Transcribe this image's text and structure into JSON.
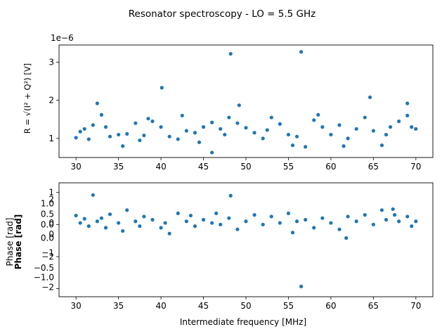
{
  "figure": {
    "suptitle": "Resonator spectroscopy - LO = 5.5 GHz",
    "point_color": "#1f77b4"
  },
  "chart_data": [
    {
      "type": "scatter",
      "title": "",
      "xlabel": "",
      "ylabel": "R = √(I² + Q²) [V]",
      "offset_text": "1e−6",
      "xlim": [
        28,
        72
      ],
      "ylim": [
        0.5,
        3.45
      ],
      "xticks": [
        30,
        35,
        40,
        45,
        50,
        55,
        60,
        65,
        70
      ],
      "yticks": [
        1,
        2,
        3
      ],
      "grid": false,
      "x_range": [
        30,
        70
      ],
      "outliers": [
        {
          "x": 32.5,
          "y": 1.92
        },
        {
          "x": 40.1,
          "y": 2.33
        },
        {
          "x": 48.2,
          "y": 3.22
        },
        {
          "x": 49.2,
          "y": 1.87
        },
        {
          "x": 56.5,
          "y": 3.27
        },
        {
          "x": 64.6,
          "y": 2.08
        },
        {
          "x": 69.0,
          "y": 1.92
        },
        {
          "x": 46.0,
          "y": 0.63
        }
      ],
      "series": [
        {
          "points": [
            [
              30.0,
              1.02
            ],
            [
              30.5,
              1.18
            ],
            [
              31.0,
              1.25
            ],
            [
              31.5,
              0.98
            ],
            [
              32.0,
              1.35
            ],
            [
              33.0,
              1.62
            ],
            [
              33.5,
              1.3
            ],
            [
              34.0,
              1.05
            ],
            [
              35.0,
              1.1
            ],
            [
              35.5,
              0.8
            ],
            [
              36.0,
              1.12
            ],
            [
              37.0,
              1.4
            ],
            [
              37.5,
              0.95
            ],
            [
              38.0,
              1.08
            ],
            [
              38.5,
              1.52
            ],
            [
              39.0,
              1.45
            ],
            [
              40.0,
              1.3
            ],
            [
              41.0,
              1.05
            ],
            [
              42.0,
              0.98
            ],
            [
              42.5,
              1.6
            ],
            [
              43.0,
              1.2
            ],
            [
              44.0,
              1.15
            ],
            [
              44.5,
              0.9
            ],
            [
              45.0,
              1.3
            ],
            [
              46.0,
              1.42
            ],
            [
              47.0,
              1.25
            ],
            [
              47.5,
              1.1
            ],
            [
              48.0,
              1.55
            ],
            [
              49.0,
              1.4
            ],
            [
              50.0,
              1.28
            ],
            [
              51.0,
              1.15
            ],
            [
              52.0,
              1.0
            ],
            [
              52.5,
              1.22
            ],
            [
              53.0,
              1.55
            ],
            [
              54.0,
              1.38
            ],
            [
              55.0,
              1.1
            ],
            [
              55.5,
              0.82
            ],
            [
              56.0,
              1.05
            ],
            [
              57.0,
              0.78
            ],
            [
              58.0,
              1.48
            ],
            [
              58.5,
              1.62
            ],
            [
              59.0,
              1.3
            ],
            [
              60.0,
              1.1
            ],
            [
              61.0,
              1.35
            ],
            [
              61.5,
              0.8
            ],
            [
              62.0,
              1.0
            ],
            [
              63.0,
              1.25
            ],
            [
              64.0,
              1.55
            ],
            [
              65.0,
              1.2
            ],
            [
              66.0,
              0.82
            ],
            [
              66.5,
              1.1
            ],
            [
              67.0,
              1.3
            ],
            [
              68.0,
              1.45
            ],
            [
              69.0,
              1.6
            ],
            [
              69.5,
              1.3
            ],
            [
              70.0,
              1.25
            ]
          ]
        }
      ]
    },
    {
      "type": "scatter",
      "title": "",
      "xlabel": "Intermediate frequency [MHz]",
      "ylabel": "Phase [rad]",
      "xlim": [
        28,
        72
      ],
      "ylim": [
        -2.25,
        1.3
      ],
      "xticks": [
        30,
        35,
        40,
        45,
        50,
        55,
        60,
        65,
        70
      ],
      "yticks": [
        -2,
        -1,
        0,
        1
      ],
      "overlapping_tick_labels": [
        {
          "label": "1",
          "y": 1.0
        },
        {
          "label": "2",
          "y": 0.78
        },
        {
          "label": "1.0",
          "y": 0.65
        },
        {
          "label": "0.5",
          "y": 0.33
        },
        {
          "label": "0",
          "y": 0.05
        },
        {
          "label": "0.0",
          "y": 0.0
        },
        {
          "label": "0",
          "y": -0.3
        },
        {
          "label": "0.0",
          "y": -0.42
        },
        {
          "label": "−1",
          "y": -0.88
        },
        {
          "label": "−2",
          "y": -1.0
        },
        {
          "label": "−0.5",
          "y": -1.35
        },
        {
          "label": "−1.0",
          "y": -1.65
        },
        {
          "label": "−2",
          "y": -1.95
        }
      ],
      "overlapping_ylabels": [
        "Phase [rad]",
        "Phase [rad]"
      ],
      "grid": false,
      "outliers": [
        {
          "x": 32.0,
          "y": 0.92
        },
        {
          "x": 48.2,
          "y": 0.9
        },
        {
          "x": 56.5,
          "y": -1.93
        },
        {
          "x": 61.8,
          "y": -0.42
        },
        {
          "x": 67.3,
          "y": 0.48
        }
      ],
      "series": [
        {
          "points": [
            [
              30.0,
              0.28
            ],
            [
              30.5,
              0.05
            ],
            [
              31.0,
              0.18
            ],
            [
              31.5,
              -0.05
            ],
            [
              32.5,
              0.1
            ],
            [
              33.0,
              0.2
            ],
            [
              33.5,
              -0.1
            ],
            [
              34.0,
              0.32
            ],
            [
              35.0,
              0.05
            ],
            [
              35.5,
              -0.2
            ],
            [
              36.0,
              0.45
            ],
            [
              37.0,
              0.1
            ],
            [
              37.5,
              -0.05
            ],
            [
              38.0,
              0.25
            ],
            [
              39.0,
              0.15
            ],
            [
              40.0,
              -0.1
            ],
            [
              40.5,
              0.05
            ],
            [
              41.0,
              -0.28
            ],
            [
              42.0,
              0.35
            ],
            [
              43.0,
              0.1
            ],
            [
              43.5,
              0.28
            ],
            [
              44.0,
              -0.05
            ],
            [
              45.0,
              0.15
            ],
            [
              46.0,
              0.05
            ],
            [
              46.5,
              0.35
            ],
            [
              47.0,
              0.0
            ],
            [
              48.0,
              0.2
            ],
            [
              49.0,
              -0.15
            ],
            [
              50.0,
              0.1
            ],
            [
              51.0,
              0.3
            ],
            [
              52.0,
              0.0
            ],
            [
              53.0,
              0.25
            ],
            [
              54.0,
              0.05
            ],
            [
              55.0,
              0.35
            ],
            [
              55.5,
              -0.25
            ],
            [
              56.0,
              0.1
            ],
            [
              57.0,
              0.15
            ],
            [
              58.0,
              -0.1
            ],
            [
              59.0,
              0.2
            ],
            [
              60.0,
              0.05
            ],
            [
              61.0,
              -0.15
            ],
            [
              62.0,
              0.25
            ],
            [
              63.0,
              0.1
            ],
            [
              64.0,
              0.3
            ],
            [
              65.0,
              0.0
            ],
            [
              66.0,
              0.45
            ],
            [
              66.5,
              0.15
            ],
            [
              67.5,
              0.3
            ],
            [
              68.0,
              0.1
            ],
            [
              69.0,
              0.25
            ],
            [
              69.5,
              -0.05
            ],
            [
              70.0,
              0.1
            ]
          ]
        }
      ]
    }
  ]
}
